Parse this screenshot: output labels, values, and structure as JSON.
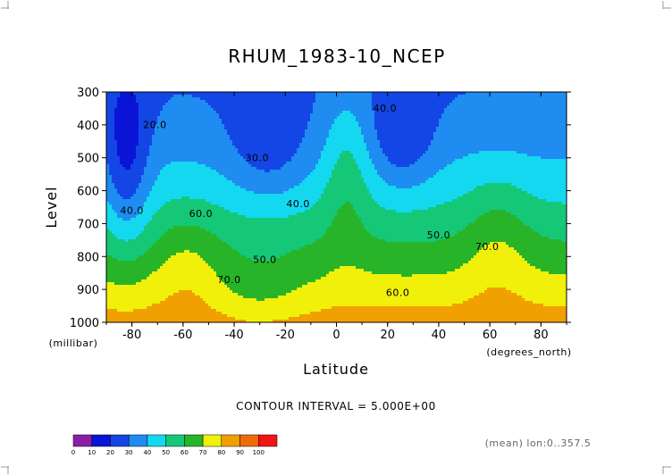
{
  "chart_data": {
    "type": "heatmap",
    "title": "RHUM_1983-10_NCEP",
    "xlabel": "Latitude",
    "ylabel": "Level",
    "x_unit": "(degrees_north)",
    "y_unit": "(millibar)",
    "xlim": [
      -90,
      90
    ],
    "ylim": [
      1000,
      300
    ],
    "x_ticks": [
      "-80",
      "-60",
      "-40",
      "-20",
      "0",
      "20",
      "40",
      "60",
      "80"
    ],
    "y_ticks": [
      "300",
      "400",
      "500",
      "600",
      "700",
      "800",
      "900",
      "1000"
    ],
    "contour_interval_text": "CONTOUR INTERVAL = 5.000E+00",
    "averaging_text": "(mean) lon:0..357.5",
    "contour_labels": [
      {
        "text": "20.0",
        "lat": -71,
        "lev": 410
      },
      {
        "text": "40.0",
        "lat": -80,
        "lev": 670
      },
      {
        "text": "40.0",
        "lat": 19,
        "lev": 360
      },
      {
        "text": "30.0",
        "lat": -31,
        "lev": 510
      },
      {
        "text": "40.0",
        "lat": -15,
        "lev": 650
      },
      {
        "text": "60.0",
        "lat": -53,
        "lev": 680
      },
      {
        "text": "50.0",
        "lat": -28,
        "lev": 820
      },
      {
        "text": "50.0",
        "lat": 40,
        "lev": 745
      },
      {
        "text": "70.0",
        "lat": -42,
        "lev": 880
      },
      {
        "text": "70.0",
        "lat": 59,
        "lev": 780
      },
      {
        "text": "60.0",
        "lat": 24,
        "lev": 920
      }
    ],
    "grid": false,
    "colorbar": {
      "levels": [
        "0",
        "10",
        "20",
        "30",
        "40",
        "50",
        "60",
        "70",
        "80",
        "90",
        "100"
      ],
      "colors": [
        "#8a1fa6",
        "#0a14d6",
        "#1446e6",
        "#1e8cf0",
        "#14d8f0",
        "#14c878",
        "#28b428",
        "#f0f00a",
        "#f0a000",
        "#f06a0a",
        "#f01414"
      ]
    }
  }
}
